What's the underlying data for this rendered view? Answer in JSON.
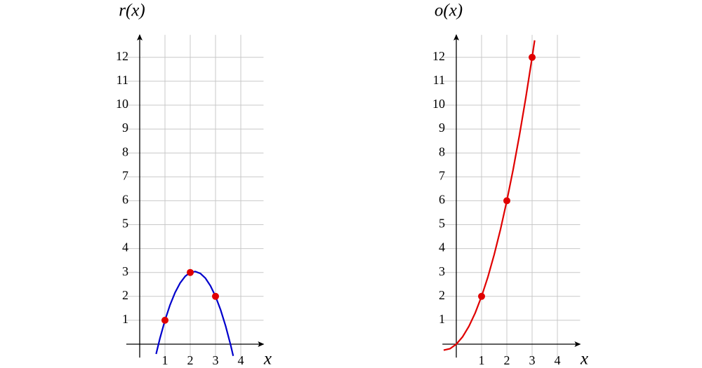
{
  "chart_data": [
    {
      "type": "line",
      "title": "r(x)",
      "xlabel": "x",
      "xlim": [
        -0.53,
        4.9
      ],
      "ylim": [
        -0.56,
        12.94
      ],
      "xticks": [
        1,
        2,
        3,
        4
      ],
      "yticks": [
        1,
        2,
        3,
        4,
        5,
        6,
        7,
        8,
        9,
        10,
        11,
        12
      ],
      "grid": true,
      "curve": {
        "color": "#0000cc",
        "x": [
          0.65,
          0.8,
          1,
          1.2,
          1.4,
          1.6,
          1.8,
          2,
          2.2,
          2.4,
          2.6,
          2.8,
          3,
          3.2,
          3.4,
          3.6,
          3.7
        ],
        "values": [
          -0.41,
          0.24,
          1,
          1.64,
          2.16,
          2.56,
          2.84,
          3,
          3.04,
          2.96,
          2.76,
          2.44,
          2,
          1.44,
          0.76,
          -0.04,
          -0.49
        ]
      },
      "points": {
        "color": "#e00000",
        "x": [
          1,
          2,
          3
        ],
        "values": [
          1,
          3,
          2
        ]
      }
    },
    {
      "type": "line",
      "title": "o(x)",
      "xlabel": "x",
      "xlim": [
        -0.55,
        4.9
      ],
      "ylim": [
        -0.56,
        12.94
      ],
      "xticks": [
        1,
        2,
        3,
        4
      ],
      "yticks": [
        1,
        2,
        3,
        4,
        5,
        6,
        7,
        8,
        9,
        10,
        11,
        12
      ],
      "grid": true,
      "curve": {
        "color": "#e00000",
        "x": [
          -0.5,
          -0.25,
          0,
          0.25,
          0.5,
          0.75,
          1,
          1.25,
          1.5,
          1.75,
          2,
          2.25,
          2.5,
          2.75,
          3,
          3.1
        ],
        "values": [
          -0.25,
          -0.19,
          0,
          0.31,
          0.75,
          1.31,
          2,
          2.81,
          3.75,
          4.81,
          6,
          7.31,
          8.75,
          10.31,
          12,
          12.71
        ]
      },
      "points": {
        "color": "#e00000",
        "x": [
          1,
          2,
          3
        ],
        "values": [
          2,
          6,
          12
        ]
      }
    }
  ]
}
